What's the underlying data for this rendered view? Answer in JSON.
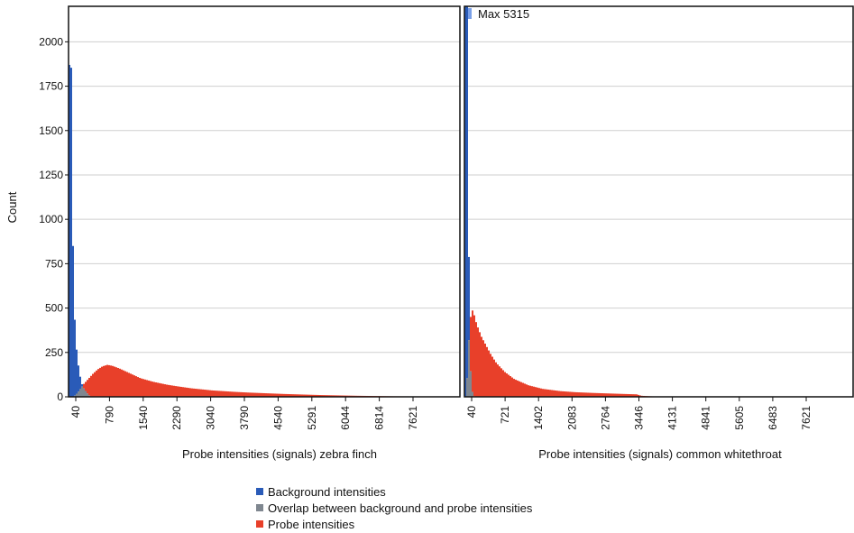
{
  "chart_data": {
    "type": "histogram",
    "ylabel": "Count",
    "colors": {
      "background": "#2a5bb8",
      "overlap": "#7f8790",
      "probe": "#e8402a"
    },
    "legend": {
      "placement": "bottom-center",
      "entries": [
        "Background intensities",
        "Overlap between background and probe intensities",
        "Probe intensities"
      ]
    },
    "panels": [
      {
        "xlabel": "Probe intensities (signals) zebra finch",
        "xlim": [
          40,
          8200
        ],
        "ylim": [
          0,
          2200
        ],
        "yticks": [
          0,
          250,
          500,
          750,
          1000,
          1250,
          1500,
          1750,
          2000
        ],
        "xticks": [
          40,
          790,
          1540,
          2290,
          3040,
          3790,
          4540,
          5291,
          6044,
          6814,
          7621
        ],
        "grid": true,
        "background_series": [
          [
            40,
            1400
          ],
          [
            60,
            1900
          ],
          [
            80,
            2100
          ],
          [
            100,
            1800
          ],
          [
            120,
            1200
          ],
          [
            140,
            700
          ],
          [
            160,
            500
          ],
          [
            190,
            330
          ],
          [
            220,
            230
          ],
          [
            260,
            150
          ],
          [
            300,
            90
          ],
          [
            340,
            55
          ],
          [
            380,
            40
          ],
          [
            430,
            20
          ],
          [
            480,
            6
          ],
          [
            520,
            0
          ]
        ],
        "probe_series": [
          [
            150,
            0
          ],
          [
            250,
            30
          ],
          [
            350,
            70
          ],
          [
            450,
            100
          ],
          [
            550,
            130
          ],
          [
            650,
            155
          ],
          [
            750,
            172
          ],
          [
            850,
            180
          ],
          [
            950,
            175
          ],
          [
            1100,
            160
          ],
          [
            1300,
            135
          ],
          [
            1540,
            105
          ],
          [
            1800,
            85
          ],
          [
            2100,
            68
          ],
          [
            2290,
            60
          ],
          [
            2600,
            48
          ],
          [
            3040,
            36
          ],
          [
            3500,
            28
          ],
          [
            3790,
            24
          ],
          [
            4540,
            16
          ],
          [
            5291,
            10
          ],
          [
            6044,
            6
          ],
          [
            6814,
            3
          ],
          [
            7621,
            2
          ],
          [
            8200,
            1
          ]
        ]
      },
      {
        "xlabel": "Probe intensities (signals) common whitethroat",
        "xlim": [
          40,
          8300
        ],
        "ylim": [
          0,
          2200
        ],
        "xticks": [
          40,
          721,
          1402,
          2083,
          2764,
          3446,
          4131,
          4841,
          5605,
          6483,
          7621
        ],
        "grid": true,
        "annotation": "Max 5315",
        "background_series": [
          [
            40,
            2200
          ],
          [
            60,
            2200
          ],
          [
            80,
            2200
          ],
          [
            100,
            2200
          ],
          [
            120,
            1500
          ],
          [
            140,
            600
          ],
          [
            160,
            250
          ],
          [
            180,
            100
          ],
          [
            200,
            40
          ],
          [
            230,
            10
          ],
          [
            260,
            0
          ]
        ],
        "probe_series": [
          [
            80,
            0
          ],
          [
            130,
            300
          ],
          [
            180,
            470
          ],
          [
            220,
            490
          ],
          [
            300,
            410
          ],
          [
            400,
            340
          ],
          [
            500,
            290
          ],
          [
            600,
            240
          ],
          [
            721,
            190
          ],
          [
            900,
            140
          ],
          [
            1100,
            100
          ],
          [
            1402,
            65
          ],
          [
            1700,
            45
          ],
          [
            2083,
            32
          ],
          [
            2400,
            26
          ],
          [
            2764,
            22
          ],
          [
            3100,
            19
          ],
          [
            3446,
            16
          ],
          [
            3700,
            14
          ],
          [
            3800,
            6
          ],
          [
            4000,
            3
          ],
          [
            4131,
            2
          ],
          [
            4841,
            1
          ],
          [
            5605,
            0
          ],
          [
            8300,
            0
          ]
        ]
      }
    ]
  }
}
